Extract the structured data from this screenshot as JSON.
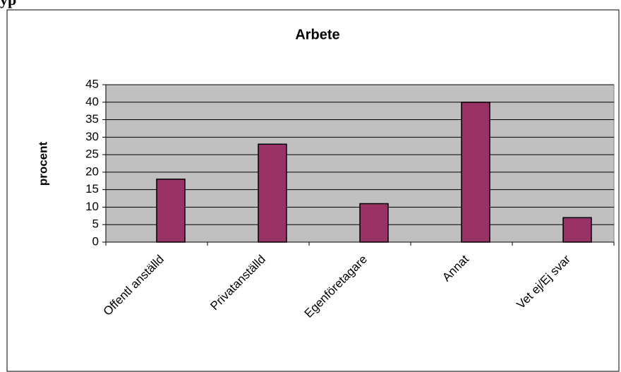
{
  "page_heading": "yp",
  "chart_data": {
    "type": "bar",
    "title": "Arbete",
    "ylabel": "procent",
    "categories": [
      "Offentl anställd",
      "Privatanställd",
      "Egenföretagare",
      "Annat",
      "Vet ej/Ej svar"
    ],
    "values": [
      18,
      28,
      11,
      40,
      7
    ],
    "color": "#993366",
    "ylim": [
      0,
      45
    ],
    "yticks": [
      0,
      5,
      10,
      15,
      20,
      25,
      30,
      35,
      40,
      45
    ],
    "grid": true
  }
}
